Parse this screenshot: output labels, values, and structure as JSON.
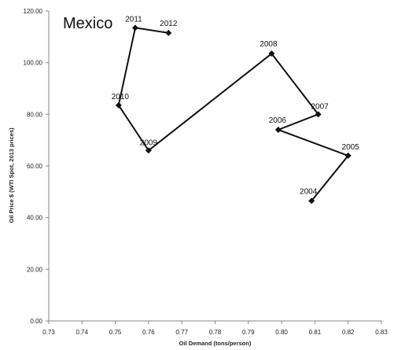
{
  "chart_data": {
    "type": "line",
    "title": "Mexico",
    "xlabel": "Oil Demand (tons/person)",
    "ylabel": "Oil Price $ (WTI Spot, 2013 prices)",
    "xlim": [
      0.73,
      0.83
    ],
    "ylim": [
      0,
      120
    ],
    "x_ticks": [
      "0.73",
      "0.74",
      "0.75",
      "0.76",
      "0.77",
      "0.78",
      "0.79",
      "0.80",
      "0.81",
      "0.82",
      "0.83"
    ],
    "y_ticks": [
      "0.00",
      "20.00",
      "40.00",
      "60.00",
      "80.00",
      "100.00",
      "120.00"
    ],
    "grid": false,
    "series": [
      {
        "points": [
          {
            "label": "2004",
            "x": 0.809,
            "y": 46.5
          },
          {
            "label": "2005",
            "x": 0.82,
            "y": 64.0
          },
          {
            "label": "2006",
            "x": 0.799,
            "y": 74.0
          },
          {
            "label": "2007",
            "x": 0.811,
            "y": 80.0
          },
          {
            "label": "2008",
            "x": 0.797,
            "y": 103.5
          },
          {
            "label": "2009",
            "x": 0.76,
            "y": 66.0
          },
          {
            "label": "2010",
            "x": 0.751,
            "y": 83.5
          },
          {
            "label": "2011",
            "x": 0.756,
            "y": 113.5
          },
          {
            "label": "2012",
            "x": 0.766,
            "y": 111.5
          }
        ]
      }
    ]
  }
}
